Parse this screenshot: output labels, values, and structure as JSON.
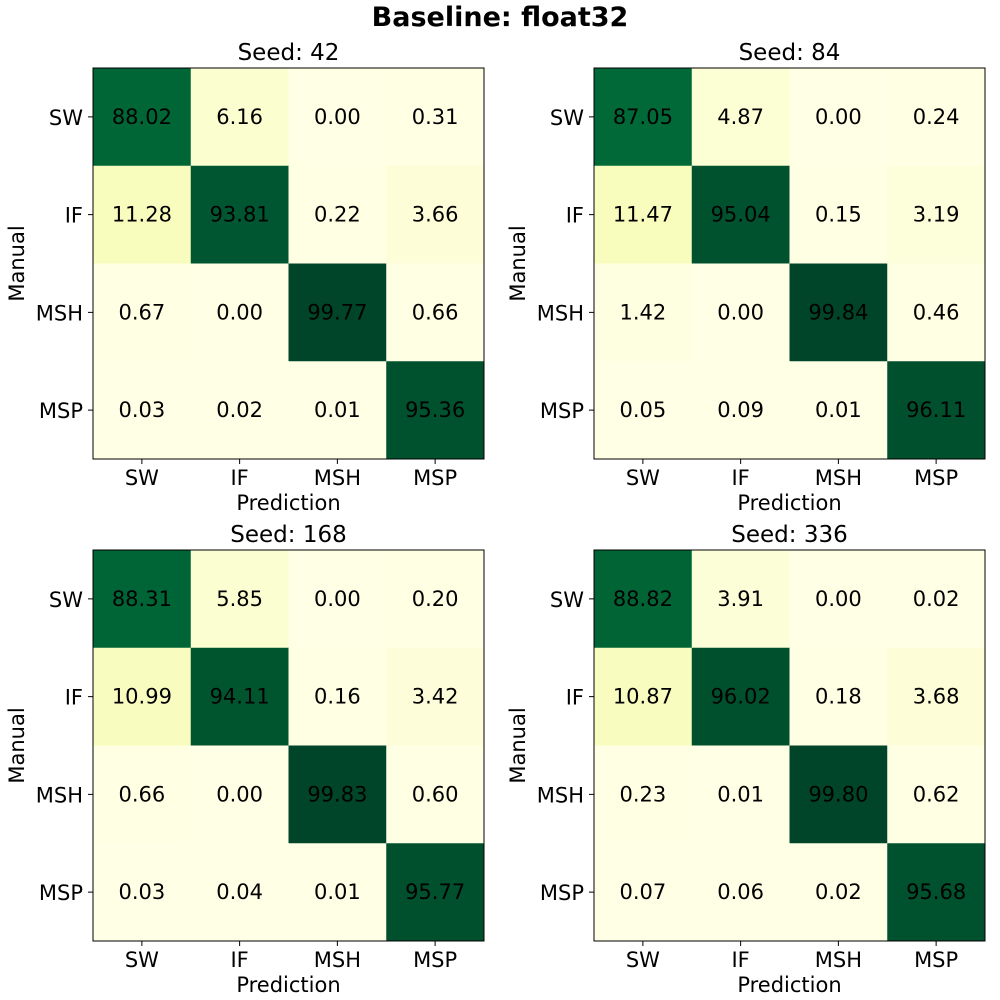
{
  "suptitle": "Baseline: float32",
  "colormap": {
    "name": "YlGn",
    "stops": [
      "#ffffe5",
      "#f7fcb9",
      "#d9f0a3",
      "#addd8e",
      "#78c679",
      "#41ab5d",
      "#238443",
      "#006837",
      "#004529"
    ]
  },
  "chart_data": [
    {
      "type": "heatmap",
      "title": "Seed: 42",
      "xlabel": "Prediction",
      "ylabel": "Manual",
      "x_categories": [
        "SW",
        "IF",
        "MSH",
        "MSP"
      ],
      "y_categories": [
        "SW",
        "IF",
        "MSH",
        "MSP"
      ],
      "values": [
        [
          88.02,
          6.16,
          0.0,
          0.31
        ],
        [
          11.28,
          93.81,
          0.22,
          3.66
        ],
        [
          0.67,
          0.0,
          99.77,
          0.66
        ],
        [
          0.03,
          0.02,
          0.01,
          95.36
        ]
      ],
      "labels": [
        [
          "88.02",
          "6.16",
          "0.00",
          "0.31"
        ],
        [
          "11.28",
          "93.81",
          "0.22",
          "3.66"
        ],
        [
          "0.67",
          "0.00",
          "99.77",
          "0.66"
        ],
        [
          "0.03",
          "0.02",
          "0.01",
          "95.36"
        ]
      ],
      "grid": false,
      "legend": "none"
    },
    {
      "type": "heatmap",
      "title": "Seed: 84",
      "xlabel": "Prediction",
      "ylabel": "Manual",
      "x_categories": [
        "SW",
        "IF",
        "MSH",
        "MSP"
      ],
      "y_categories": [
        "SW",
        "IF",
        "MSH",
        "MSP"
      ],
      "values": [
        [
          87.05,
          4.87,
          0.0,
          0.24
        ],
        [
          11.47,
          95.04,
          0.15,
          3.19
        ],
        [
          1.42,
          0.0,
          99.84,
          0.46
        ],
        [
          0.05,
          0.09,
          0.01,
          96.11
        ]
      ],
      "labels": [
        [
          "87.05",
          "4.87",
          "0.00",
          "0.24"
        ],
        [
          "11.47",
          "95.04",
          "0.15",
          "3.19"
        ],
        [
          "1.42",
          "0.00",
          "99.84",
          "0.46"
        ],
        [
          "0.05",
          "0.09",
          "0.01",
          "96.11"
        ]
      ],
      "grid": false,
      "legend": "none"
    },
    {
      "type": "heatmap",
      "title": "Seed: 168",
      "xlabel": "Prediction",
      "ylabel": "Manual",
      "x_categories": [
        "SW",
        "IF",
        "MSH",
        "MSP"
      ],
      "y_categories": [
        "SW",
        "IF",
        "MSH",
        "MSP"
      ],
      "values": [
        [
          88.31,
          5.85,
          0.0,
          0.2
        ],
        [
          10.99,
          94.11,
          0.16,
          3.42
        ],
        [
          0.66,
          0.0,
          99.83,
          0.6
        ],
        [
          0.03,
          0.04,
          0.01,
          95.77
        ]
      ],
      "labels": [
        [
          "88.31",
          "5.85",
          "0.00",
          "0.20"
        ],
        [
          "10.99",
          "94.11",
          "0.16",
          "3.42"
        ],
        [
          "0.66",
          "0.00",
          "99.83",
          "0.60"
        ],
        [
          "0.03",
          "0.04",
          "0.01",
          "95.77"
        ]
      ],
      "grid": false,
      "legend": "none"
    },
    {
      "type": "heatmap",
      "title": "Seed: 336",
      "xlabel": "Prediction",
      "ylabel": "Manual",
      "x_categories": [
        "SW",
        "IF",
        "MSH",
        "MSP"
      ],
      "y_categories": [
        "SW",
        "IF",
        "MSH",
        "MSP"
      ],
      "values": [
        [
          88.82,
          3.91,
          0.0,
          0.02
        ],
        [
          10.87,
          96.02,
          0.18,
          3.68
        ],
        [
          0.23,
          0.01,
          99.8,
          0.62
        ],
        [
          0.07,
          0.06,
          0.02,
          95.68
        ]
      ],
      "labels": [
        [
          "88.82",
          "3.91",
          "0.00",
          "0.02"
        ],
        [
          "10.87",
          "96.02",
          "0.18",
          "3.68"
        ],
        [
          "0.23",
          "0.01",
          "99.80",
          "0.62"
        ],
        [
          "0.07",
          "0.06",
          "0.02",
          "95.68"
        ]
      ],
      "grid": false,
      "legend": "none"
    }
  ]
}
